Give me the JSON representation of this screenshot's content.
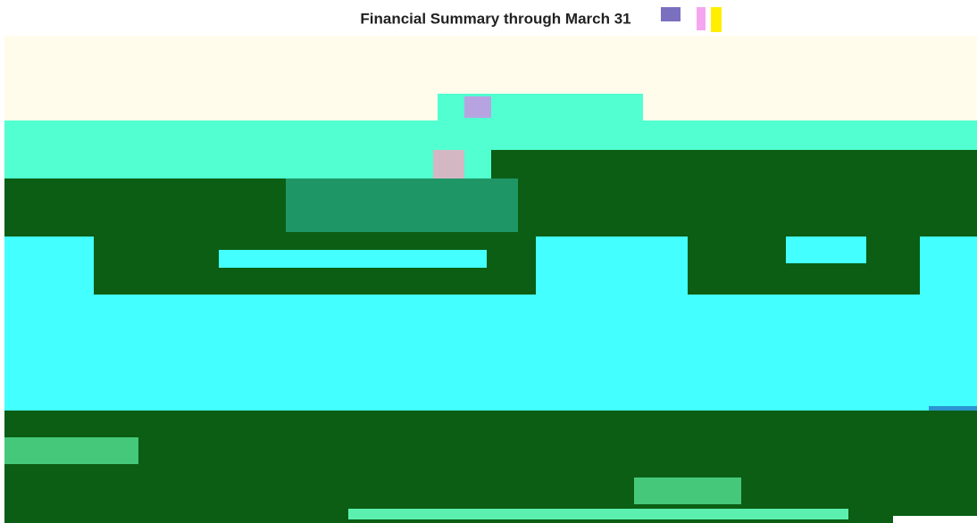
{
  "header": {
    "title": "Financial Summary through March 31"
  }
}
